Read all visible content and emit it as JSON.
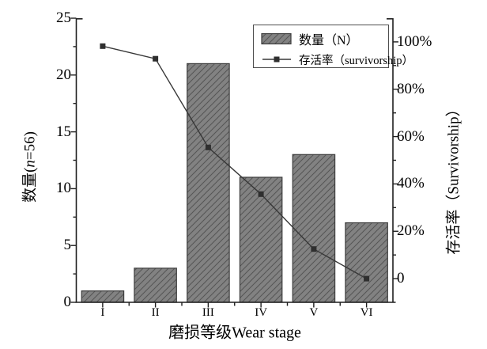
{
  "chart_data": {
    "type": "bar",
    "combo_types": [
      "bar",
      "line"
    ],
    "categories": [
      "I",
      "II",
      "III",
      "IV",
      "V",
      "VI"
    ],
    "series": [
      {
        "name": "数量（N）",
        "type": "bar",
        "axis": "left",
        "values": [
          1,
          3,
          21,
          11,
          13,
          7
        ]
      },
      {
        "name": "存活率（survivorship）",
        "type": "line",
        "axis": "right",
        "unit": "%",
        "values": [
          98.2,
          92.9,
          55.4,
          35.7,
          12.5,
          0
        ]
      }
    ],
    "title": "",
    "xlabel": "磨损等级Wear stage",
    "ylabel_left": {
      "prefix": "数量(",
      "var": "n",
      "suffix": "=56)"
    },
    "ylabel_right": "存活率（Survivorship）",
    "left_axis": {
      "min": 0,
      "max": 25,
      "major_ticks": [
        0,
        5,
        10,
        15,
        20,
        25
      ]
    },
    "right_axis": {
      "display_min": -10,
      "display_max": 110,
      "major_ticks": [
        {
          "value": 0,
          "label": "0"
        },
        {
          "value": 20,
          "label": "20%"
        },
        {
          "value": 40,
          "label": "40%"
        },
        {
          "value": 60,
          "label": "60%"
        },
        {
          "value": 80,
          "label": "80%"
        },
        {
          "value": 100,
          "label": "100%"
        }
      ]
    },
    "grid": false,
    "legend_position": "top-inside",
    "sample_size": 56
  },
  "colors": {
    "background": "#ffffff",
    "bar_fill": "#828282",
    "bar_hatch": "#555555",
    "bar_edge": "#3d3d3d",
    "line": "#383838",
    "marker": "#2f2f2f",
    "axis": "#1f1f1f",
    "text": "#000000",
    "legend_border": "#4d4d4d"
  }
}
